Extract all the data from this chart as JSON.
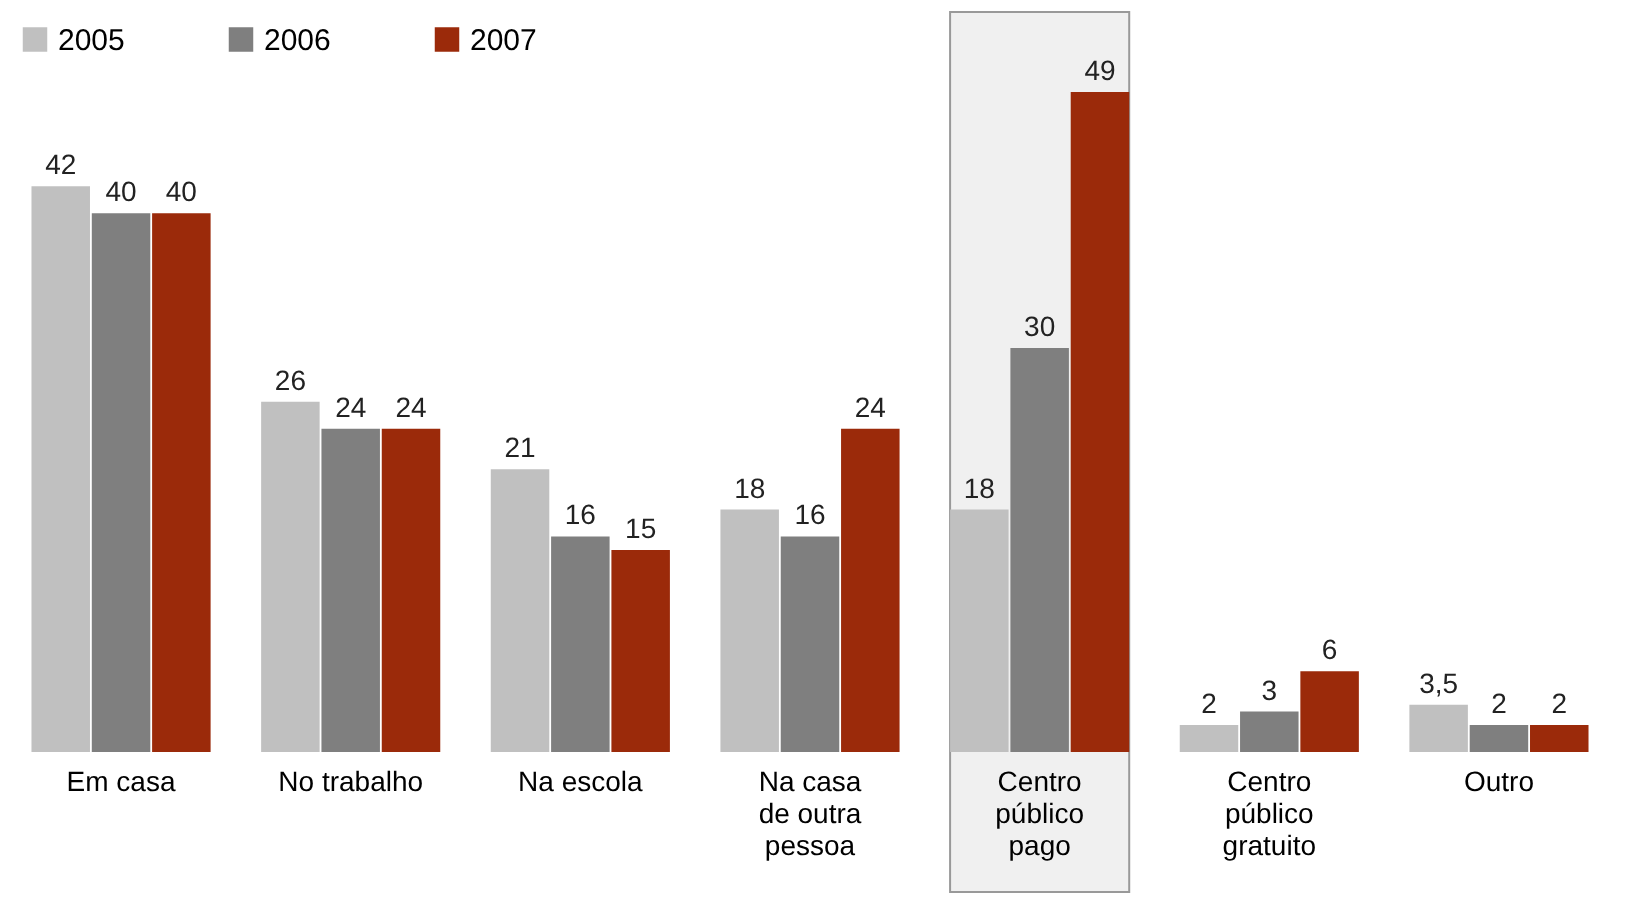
{
  "chart_data": {
    "type": "bar",
    "categories": [
      "Em casa",
      "No trabalho",
      "Na escola",
      "Na casa\nde outra\npessoa",
      "Centro\npúblico\npago",
      "Centro\npúblico\ngratuito",
      "Outro"
    ],
    "series": [
      {
        "name": "2005",
        "color": "#c0c0c0",
        "values": [
          42,
          26,
          21,
          18,
          18,
          2,
          3.5
        ],
        "value_labels": [
          "42",
          "26",
          "21",
          "18",
          "18",
          "2",
          "3,5"
        ]
      },
      {
        "name": "2006",
        "color": "#7f7f7f",
        "values": [
          40,
          24,
          16,
          16,
          30,
          3,
          2
        ],
        "value_labels": [
          "40",
          "24",
          "16",
          "16",
          "30",
          "3",
          "2"
        ]
      },
      {
        "name": "2007",
        "color": "#9b2a0a",
        "values": [
          40,
          24,
          15,
          24,
          49,
          6,
          2
        ],
        "value_labels": [
          "40",
          "24",
          "15",
          "24",
          "49",
          "6",
          "2"
        ]
      }
    ],
    "bands": [
      {
        "axis": "x",
        "from": "Centro\npúblico\npago",
        "to": "Centro\npúblico\npago",
        "color": "#f0f0f0"
      }
    ],
    "legend": "top",
    "grid": false
  }
}
